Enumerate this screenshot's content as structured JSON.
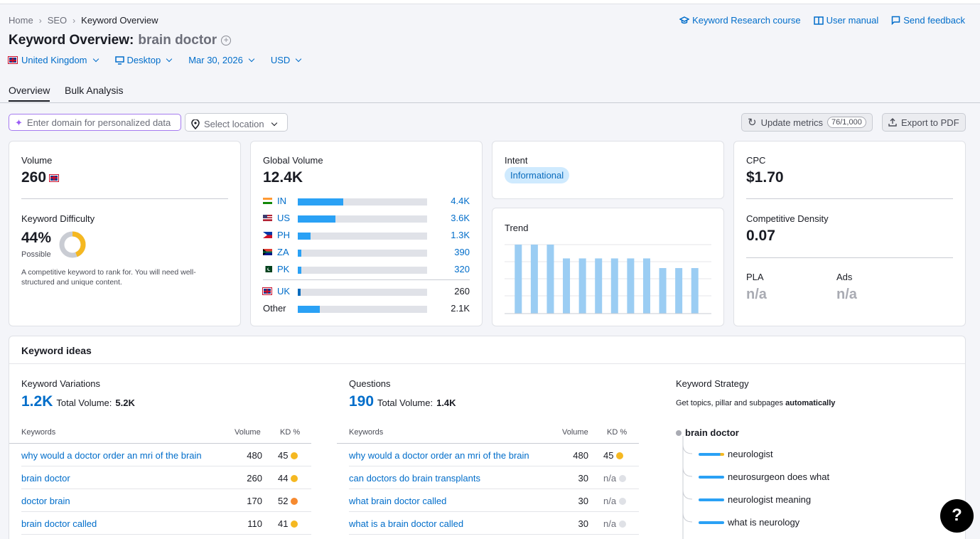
{
  "breadcrumbs": [
    "Home",
    "SEO",
    "Keyword Overview"
  ],
  "top_links": {
    "course": "Keyword Research course",
    "manual": "User manual",
    "feedback": "Send feedback"
  },
  "title": {
    "prefix": "Keyword Overview:",
    "keyword": "brain doctor"
  },
  "filters": {
    "country": "United Kingdom",
    "device": "Desktop",
    "date": "Mar 30, 2026",
    "currency": "USD"
  },
  "tabs": [
    "Overview",
    "Bulk Analysis"
  ],
  "domain_input": {
    "placeholder": "Enter domain for personalized data"
  },
  "location_select": {
    "placeholder": "Select location"
  },
  "actions": {
    "update": "Update metrics",
    "update_count": "76/1,000",
    "export": "Export to PDF"
  },
  "volume": {
    "label": "Volume",
    "value": "260"
  },
  "difficulty": {
    "label": "Keyword Difficulty",
    "value": "44%",
    "level": "Possible",
    "percent": 44,
    "description": "A competitive keyword to rank for. You will need well-structured and unique content."
  },
  "global_volume": {
    "label": "Global Volume",
    "value": "12.4K",
    "countries": [
      {
        "code": "IN",
        "value": "4.4K",
        "share": 0.35
      },
      {
        "code": "US",
        "value": "3.6K",
        "share": 0.29
      },
      {
        "code": "PH",
        "value": "1.3K",
        "share": 0.1
      },
      {
        "code": "ZA",
        "value": "390",
        "share": 0.03
      },
      {
        "code": "PK",
        "value": "320",
        "share": 0.026
      }
    ],
    "uk": {
      "code": "UK",
      "value": "260",
      "share": 0.02
    },
    "other": {
      "label": "Other",
      "value": "2.1K",
      "share": 0.17
    }
  },
  "intent": {
    "label": "Intent",
    "value": "Informational"
  },
  "trend": {
    "label": "Trend",
    "values": [
      1.0,
      1.0,
      1.0,
      0.8,
      0.8,
      0.8,
      0.8,
      0.8,
      0.8,
      0.66,
      0.66,
      0.66
    ]
  },
  "cpc": {
    "label": "CPC",
    "value": "$1.70"
  },
  "competitive_density": {
    "label": "Competitive Density",
    "value": "0.07"
  },
  "pla": {
    "label": "PLA",
    "value": "n/a"
  },
  "ads": {
    "label": "Ads",
    "value": "n/a"
  },
  "keyword_ideas": {
    "title": "Keyword ideas",
    "variations": {
      "label": "Keyword Variations",
      "count": "1.2K",
      "total_label": "Total Volume:",
      "total": "5.2K",
      "headers": [
        "Keywords",
        "Volume",
        "KD %"
      ],
      "rows": [
        {
          "keyword": "why would a doctor order an mri of the brain",
          "volume": "480",
          "kd": "45",
          "kd_color": "#f5b821"
        },
        {
          "keyword": "brain doctor",
          "volume": "260",
          "kd": "44",
          "kd_color": "#f5b821"
        },
        {
          "keyword": "doctor brain",
          "volume": "170",
          "kd": "52",
          "kd_color": "#f68a30"
        },
        {
          "keyword": "brain doctor called",
          "volume": "110",
          "kd": "41",
          "kd_color": "#f5b821"
        }
      ]
    },
    "questions": {
      "label": "Questions",
      "count": "190",
      "total_label": "Total Volume:",
      "total": "1.4K",
      "headers": [
        "Keywords",
        "Volume",
        "KD %"
      ],
      "rows": [
        {
          "keyword": "why would a doctor order an mri of the brain",
          "volume": "480",
          "kd": "45",
          "kd_color": "#f5b821"
        },
        {
          "keyword": "can doctors do brain transplants",
          "volume": "30",
          "kd": "n/a",
          "kd_color": "#dfe1e6"
        },
        {
          "keyword": "what brain doctor called",
          "volume": "30",
          "kd": "n/a",
          "kd_color": "#dfe1e6"
        },
        {
          "keyword": "what is a brain doctor called",
          "volume": "30",
          "kd": "n/a",
          "kd_color": "#dfe1e6"
        }
      ]
    },
    "strategy": {
      "label": "Keyword Strategy",
      "desc_prefix": "Get topics, pillar and subpages",
      "desc_bold": "automatically",
      "root": "brain doctor",
      "items": [
        "neurologist",
        "neurosurgeon does what",
        "neurologist meaning",
        "what is neurology"
      ]
    }
  },
  "help": {
    "label": "?"
  }
}
